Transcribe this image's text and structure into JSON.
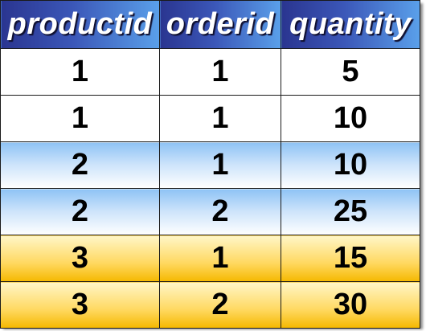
{
  "table": {
    "columns": [
      "productid",
      "orderid",
      "quantity"
    ],
    "rows": [
      {
        "productid": "1",
        "orderid": "1",
        "quantity": "5",
        "style": "white"
      },
      {
        "productid": "1",
        "orderid": "1",
        "quantity": "10",
        "style": "white"
      },
      {
        "productid": "2",
        "orderid": "1",
        "quantity": "10",
        "style": "blue"
      },
      {
        "productid": "2",
        "orderid": "2",
        "quantity": "25",
        "style": "blue"
      },
      {
        "productid": "3",
        "orderid": "1",
        "quantity": "15",
        "style": "gold"
      },
      {
        "productid": "3",
        "orderid": "2",
        "quantity": "30",
        "style": "gold"
      }
    ]
  },
  "colors": {
    "header_dark": "#2a3590",
    "header_light": "#5aa0ea",
    "row_blue": "#8ec3f5",
    "row_gold": "#ffd860",
    "border": "#1a1a1a"
  }
}
